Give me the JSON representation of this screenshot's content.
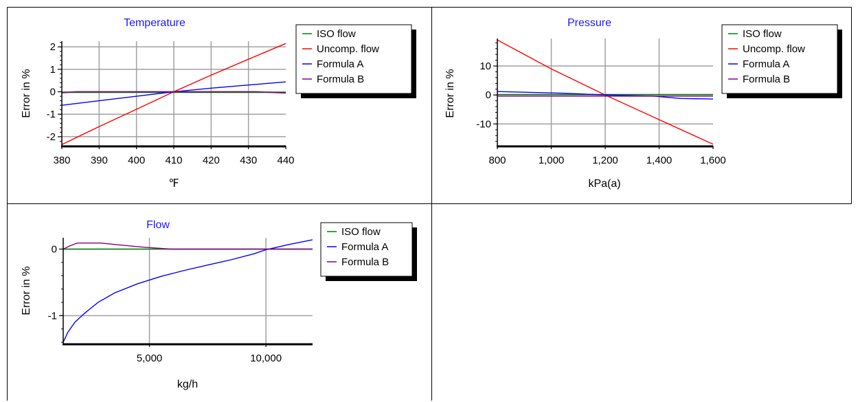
{
  "chart_data": [
    {
      "type": "line",
      "title": "Temperature",
      "xlabel": "℉",
      "ylabel": "Error in %",
      "xlim": [
        380,
        440
      ],
      "ylim": [
        -2.4,
        2.25
      ],
      "x_ticks": [
        380,
        390,
        400,
        410,
        420,
        430,
        440
      ],
      "x_tick_labels": [
        "380",
        "390",
        "400",
        "410",
        "420",
        "430",
        "440"
      ],
      "y_ticks": [
        2,
        1,
        0,
        -1,
        -2
      ],
      "y_tick_labels": [
        "2",
        "1",
        "0",
        "-1",
        "-2"
      ],
      "grid": true,
      "legend_position": "right",
      "series": [
        {
          "name": "ISO flow",
          "color": "#008000",
          "x": [
            380,
            440
          ],
          "y": [
            -0.03,
            -0.03
          ]
        },
        {
          "name": "Uncomp. flow",
          "color": "#ff0000",
          "x": [
            380,
            390,
            400,
            410,
            420,
            430,
            440
          ],
          "y": [
            -2.35,
            -1.55,
            -0.78,
            0.0,
            0.74,
            1.45,
            2.15
          ]
        },
        {
          "name": "Formula A",
          "color": "#0000ff",
          "x": [
            380,
            390,
            400,
            410,
            420,
            430,
            440
          ],
          "y": [
            -0.6,
            -0.4,
            -0.2,
            0.0,
            0.16,
            0.3,
            0.44
          ]
        },
        {
          "name": "Formula B",
          "color": "#800080",
          "x": [
            380,
            384,
            432,
            440
          ],
          "y": [
            -0.05,
            0.0,
            0.0,
            -0.06
          ]
        }
      ]
    },
    {
      "type": "line",
      "title": "Pressure",
      "xlabel": "kPa(a)",
      "ylabel": "Error in %",
      "xlim": [
        800,
        1600
      ],
      "ylim": [
        -17.5,
        19.5
      ],
      "x_ticks": [
        800,
        1000,
        1200,
        1400,
        1600
      ],
      "x_tick_labels": [
        "800",
        "1,000",
        "1,200",
        "1,400",
        "1,600"
      ],
      "y_ticks": [
        10,
        0,
        -10
      ],
      "y_tick_labels": [
        "10",
        "0",
        "-10"
      ],
      "grid": true,
      "legend_position": "right",
      "series": [
        {
          "name": "ISO flow",
          "color": "#008000",
          "x": [
            800,
            1600
          ],
          "y": [
            0.2,
            0.2
          ]
        },
        {
          "name": "Uncomp. flow",
          "color": "#ff0000",
          "x": [
            800,
            1000,
            1200,
            1400,
            1600
          ],
          "y": [
            19.0,
            9.0,
            0.0,
            -8.5,
            -17.0
          ]
        },
        {
          "name": "Formula A",
          "color": "#0000ff",
          "x": [
            800,
            1050,
            1200,
            1380,
            1480,
            1600
          ],
          "y": [
            1.2,
            0.6,
            0.0,
            -0.4,
            -1.2,
            -1.4
          ]
        },
        {
          "name": "Formula B",
          "color": "#800080",
          "x": [
            800,
            1600
          ],
          "y": [
            -0.4,
            -0.4
          ]
        }
      ]
    },
    {
      "type": "line",
      "title": "Flow",
      "xlabel": "kg/h",
      "ylabel": "Error in %",
      "xlim": [
        1300,
        12000
      ],
      "ylim": [
        -1.42,
        0.17
      ],
      "x_ticks": [
        5000,
        10000
      ],
      "x_tick_labels": [
        "5,000",
        "10,000"
      ],
      "y_ticks": [
        0,
        -1
      ],
      "y_tick_labels": [
        "0",
        "-1"
      ],
      "grid": true,
      "legend_position": "right",
      "series": [
        {
          "name": "ISO flow",
          "color": "#008000",
          "x": [
            1300,
            12000
          ],
          "y": [
            0.0,
            0.0
          ]
        },
        {
          "name": "Formula A",
          "color": "#0000ff",
          "x": [
            1300,
            1500,
            1800,
            2200,
            2800,
            3500,
            4500,
            5500,
            6500,
            7500,
            8500,
            9500,
            10000,
            11000,
            12000
          ],
          "y": [
            -1.4,
            -1.25,
            -1.1,
            -0.97,
            -0.8,
            -0.66,
            -0.52,
            -0.41,
            -0.32,
            -0.24,
            -0.16,
            -0.07,
            -0.01,
            0.07,
            0.14
          ]
        },
        {
          "name": "Formula B",
          "color": "#800080",
          "x": [
            1300,
            1600,
            1900,
            2900,
            3800,
            4700,
            5900,
            12000
          ],
          "y": [
            0.0,
            0.05,
            0.09,
            0.09,
            0.06,
            0.03,
            0.0,
            0.0
          ]
        }
      ]
    }
  ]
}
